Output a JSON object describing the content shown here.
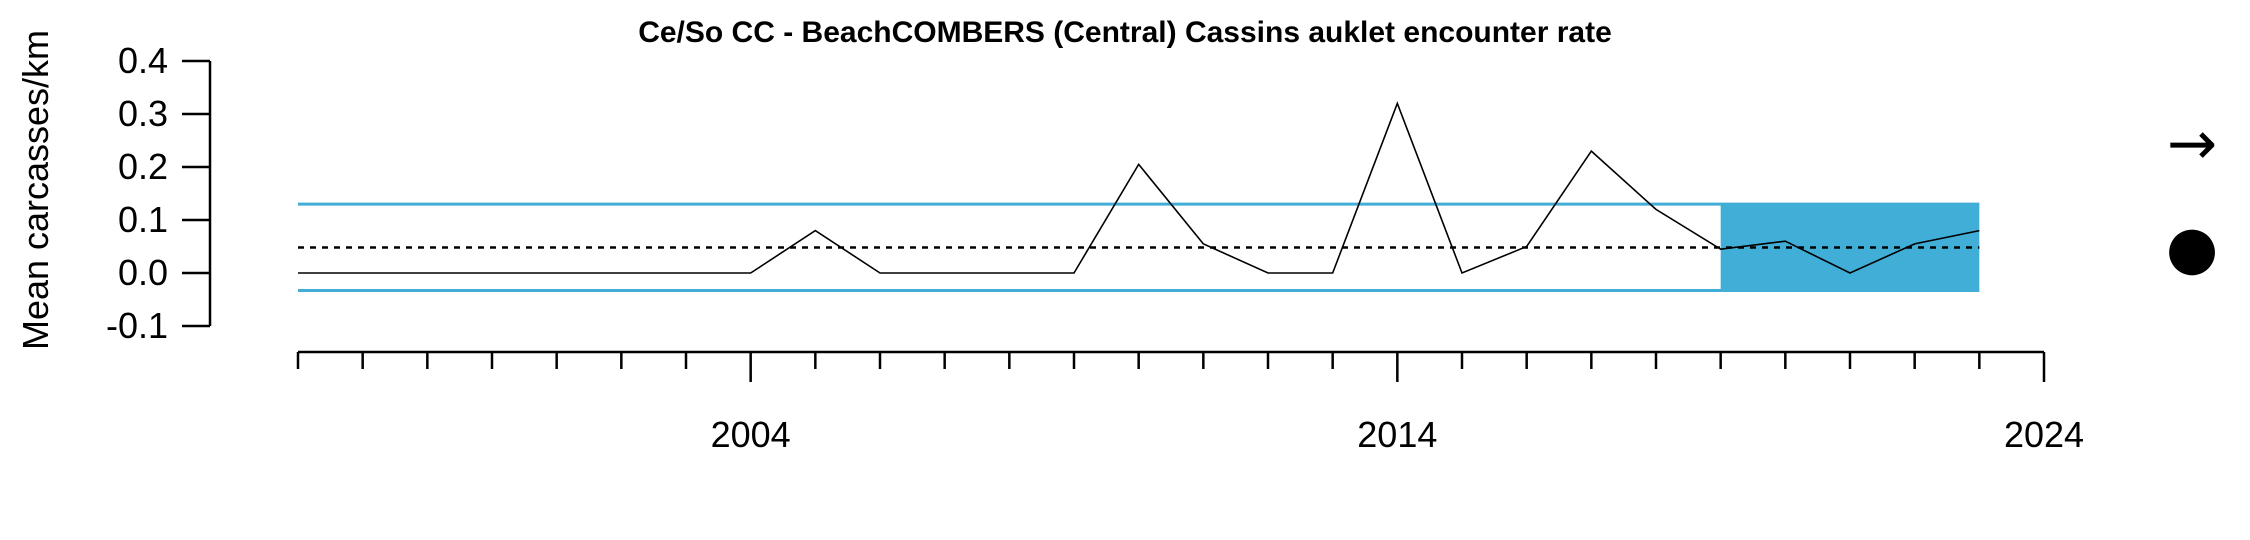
{
  "chart_data": {
    "type": "line",
    "title": "Ce/So CC - BeachCOMBERS (Central) Cassins auklet encounter rate",
    "xlabel": "",
    "ylabel": "Mean carcasses/km",
    "x_tick_labels": [
      "2004",
      "2014",
      "2024"
    ],
    "y_tick_labels": [
      "-0.1",
      "0.0",
      "0.1",
      "0.2",
      "0.3",
      "0.4"
    ],
    "xlim": [
      1997,
      2024
    ],
    "ylim": [
      -0.1,
      0.4
    ],
    "grid": false,
    "series": [
      {
        "x": [
          1997,
          1998,
          1999,
          2000,
          2001,
          2002,
          2003,
          2004,
          2005,
          2006,
          2007,
          2008,
          2009,
          2010,
          2011,
          2012,
          2013,
          2014,
          2015,
          2016,
          2017,
          2018,
          2019,
          2020,
          2021,
          2022,
          2023
        ],
        "y": [
          0.0,
          0.0,
          0.0,
          0.0,
          0.0,
          0.0,
          0.0,
          0.0,
          0.08,
          0.0,
          0.0,
          0.0,
          0.0,
          0.205,
          0.055,
          0.0,
          0.0,
          0.32,
          0.0,
          0.05,
          0.23,
          0.12,
          0.045,
          0.06,
          0.0,
          0.055,
          0.08
        ]
      }
    ],
    "mean": 0.048,
    "sd_band": [
      -0.033,
      0.13
    ],
    "highlight_x_range": [
      2019,
      2023
    ],
    "trend_symbol": "→",
    "status_symbol": "●",
    "colors": {
      "line": "#000000",
      "band": "#41AED7",
      "highlight": "#41AED7",
      "mean_line": "#000000"
    }
  }
}
